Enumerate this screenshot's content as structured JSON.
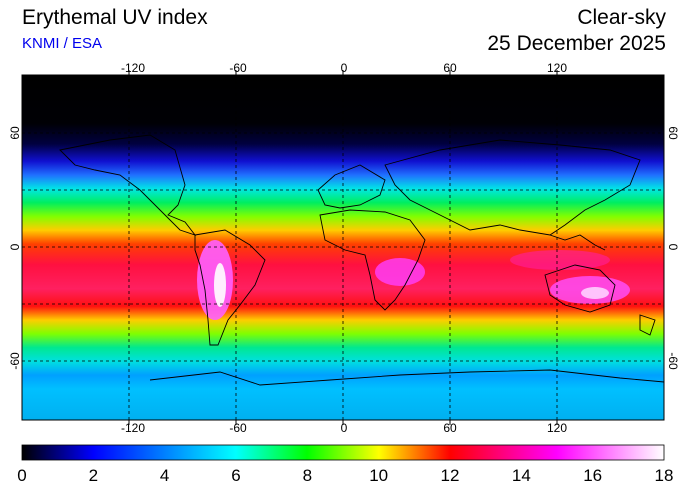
{
  "header": {
    "title": "Erythemal UV index",
    "credit": "KNMI / ESA",
    "mode": "Clear-sky",
    "date": "25 December 2025"
  },
  "map": {
    "lon_ticks": [
      "-120",
      "-60",
      "0",
      "60",
      "120"
    ],
    "lat_ticks": [
      "60",
      "0",
      "-60"
    ],
    "grid": true
  },
  "colorbar": {
    "min": 0,
    "max": 18,
    "tick_labels": [
      "0",
      "2",
      "4",
      "6",
      "8",
      "10",
      "12",
      "14",
      "16",
      "18"
    ],
    "colors": [
      "#000000",
      "#0000ff",
      "#00ffff",
      "#00ff00",
      "#ffff00",
      "#ff0000",
      "#ff00ff",
      "#ffffff"
    ]
  }
}
